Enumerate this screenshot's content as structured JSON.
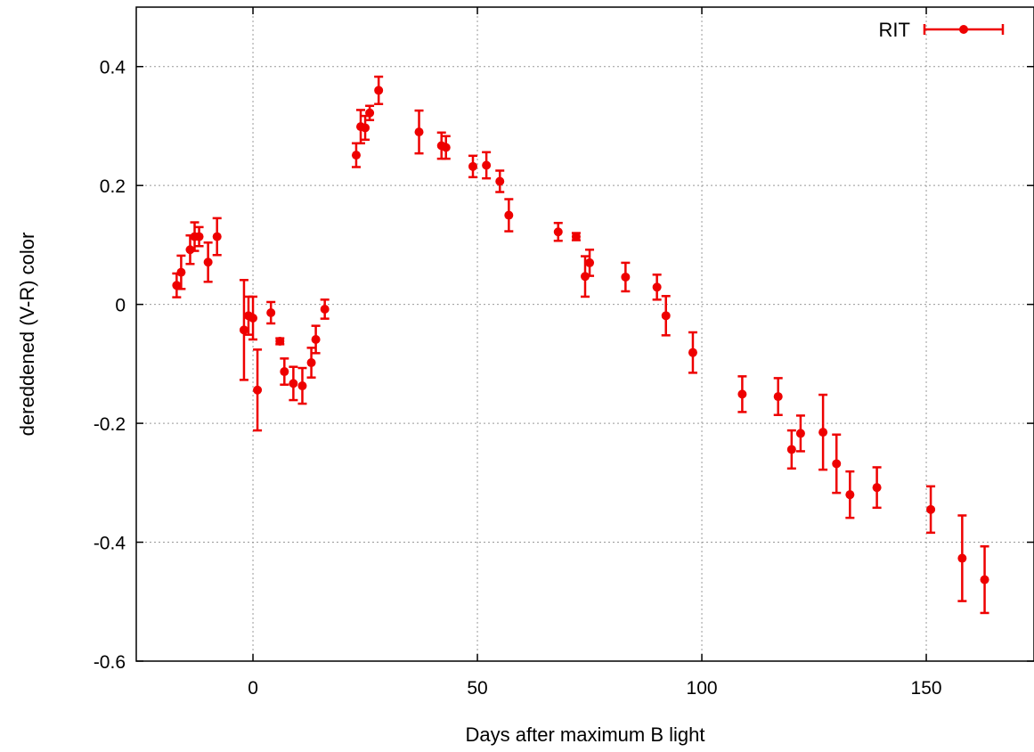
{
  "chart_data": {
    "type": "scatter",
    "title": "",
    "xlabel": "Days after maximum B light",
    "ylabel": "dereddened (V-R) color",
    "xlim": [
      -26,
      174
    ],
    "ylim": [
      -0.6,
      0.5
    ],
    "xticks": [
      0,
      50,
      100,
      150
    ],
    "yticks": [
      -0.6,
      -0.4,
      -0.2,
      0,
      0.2,
      0.4
    ],
    "xtick_labels": [
      "0",
      "50",
      "100",
      "150"
    ],
    "ytick_labels": [
      "-0.6",
      "-0.4",
      "-0.2",
      "0",
      "0.2",
      "0.4"
    ],
    "grid": true,
    "legend_position": "top-right",
    "colors": {
      "series": "#ee0000",
      "grid": "#999999",
      "axis": "#000000"
    },
    "series": [
      {
        "name": "RIT",
        "points": [
          {
            "x": -17.0,
            "y": 0.032,
            "err": 0.02
          },
          {
            "x": -16.0,
            "y": 0.054,
            "err": 0.028
          },
          {
            "x": -14.0,
            "y": 0.092,
            "err": 0.024
          },
          {
            "x": -13.0,
            "y": 0.114,
            "err": 0.024
          },
          {
            "x": -12.0,
            "y": 0.114,
            "err": 0.016
          },
          {
            "x": -10.0,
            "y": 0.071,
            "err": 0.033
          },
          {
            "x": -8.0,
            "y": 0.114,
            "err": 0.031
          },
          {
            "x": -2.0,
            "y": -0.043,
            "err": 0.084
          },
          {
            "x": -1.0,
            "y": -0.019,
            "err": 0.032
          },
          {
            "x": 0.0,
            "y": -0.023,
            "err": 0.036
          },
          {
            "x": 1.0,
            "y": -0.144,
            "err": 0.068
          },
          {
            "x": 4.0,
            "y": -0.014,
            "err": 0.018
          },
          {
            "x": 6.0,
            "y": -0.062,
            "err": 0.005
          },
          {
            "x": 7.0,
            "y": -0.113,
            "err": 0.022
          },
          {
            "x": 9.0,
            "y": -0.133,
            "err": 0.028
          },
          {
            "x": 11.0,
            "y": -0.137,
            "err": 0.03
          },
          {
            "x": 13.0,
            "y": -0.098,
            "err": 0.025
          },
          {
            "x": 14.0,
            "y": -0.059,
            "err": 0.023
          },
          {
            "x": 16.0,
            "y": -0.008,
            "err": 0.016
          },
          {
            "x": 23.0,
            "y": 0.251,
            "err": 0.02
          },
          {
            "x": 24.0,
            "y": 0.299,
            "err": 0.028
          },
          {
            "x": 25.0,
            "y": 0.297,
            "err": 0.02
          },
          {
            "x": 26.0,
            "y": 0.322,
            "err": 0.012
          },
          {
            "x": 28.0,
            "y": 0.36,
            "err": 0.023
          },
          {
            "x": 37.0,
            "y": 0.29,
            "err": 0.036
          },
          {
            "x": 42.0,
            "y": 0.267,
            "err": 0.022
          },
          {
            "x": 43.0,
            "y": 0.264,
            "err": 0.019
          },
          {
            "x": 49.0,
            "y": 0.232,
            "err": 0.018
          },
          {
            "x": 52.0,
            "y": 0.234,
            "err": 0.022
          },
          {
            "x": 55.0,
            "y": 0.207,
            "err": 0.018
          },
          {
            "x": 57.0,
            "y": 0.15,
            "err": 0.027
          },
          {
            "x": 68.0,
            "y": 0.122,
            "err": 0.015
          },
          {
            "x": 72.0,
            "y": 0.114,
            "err": 0.006
          },
          {
            "x": 74.0,
            "y": 0.047,
            "err": 0.034
          },
          {
            "x": 75.0,
            "y": 0.07,
            "err": 0.022
          },
          {
            "x": 83.0,
            "y": 0.046,
            "err": 0.024
          },
          {
            "x": 90.0,
            "y": 0.029,
            "err": 0.021
          },
          {
            "x": 92.0,
            "y": -0.019,
            "err": 0.033
          },
          {
            "x": 98.0,
            "y": -0.081,
            "err": 0.034
          },
          {
            "x": 109.0,
            "y": -0.151,
            "err": 0.03
          },
          {
            "x": 117.0,
            "y": -0.155,
            "err": 0.031
          },
          {
            "x": 120.0,
            "y": -0.244,
            "err": 0.032
          },
          {
            "x": 122.0,
            "y": -0.217,
            "err": 0.03
          },
          {
            "x": 127.0,
            "y": -0.215,
            "err": 0.063
          },
          {
            "x": 130.0,
            "y": -0.268,
            "err": 0.049
          },
          {
            "x": 133.0,
            "y": -0.32,
            "err": 0.039
          },
          {
            "x": 139.0,
            "y": -0.308,
            "err": 0.034
          },
          {
            "x": 151.0,
            "y": -0.345,
            "err": 0.039
          },
          {
            "x": 158.0,
            "y": -0.427,
            "err": 0.072
          },
          {
            "x": 163.0,
            "y": -0.463,
            "err": 0.056
          }
        ]
      }
    ]
  }
}
